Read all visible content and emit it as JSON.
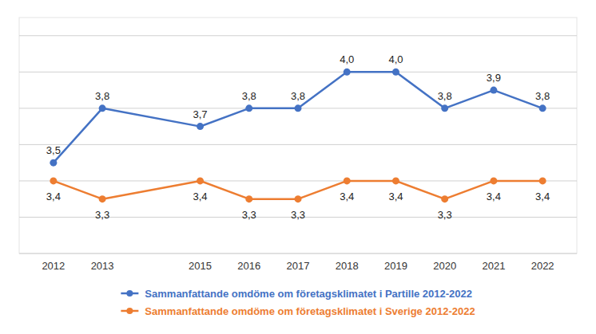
{
  "chart_data": {
    "type": "line",
    "x": [
      2012,
      2013,
      2015,
      2016,
      2017,
      2018,
      2019,
      2020,
      2021,
      2022
    ],
    "xlim": [
      2011.3,
      2022.7
    ],
    "xticks": [
      2012,
      2013,
      2015,
      2016,
      2017,
      2018,
      2019,
      2020,
      2021,
      2022
    ],
    "ylim": [
      3.0,
      4.3
    ],
    "yticks": [
      3.0,
      3.2,
      3.4,
      3.6,
      3.8,
      4.0,
      4.2
    ],
    "tick_labels": "x",
    "grid": true,
    "legend": "bottom",
    "data_labels": true,
    "marker": "circle",
    "series": [
      {
        "name": "Sammanfattande omdöme om företagsklimatet i Partille 2012-2022",
        "color": "#4472C4",
        "values": [
          3.5,
          3.8,
          3.7,
          3.8,
          3.8,
          4.0,
          4.0,
          3.8,
          3.9,
          3.8
        ],
        "value_labels": [
          "3,5",
          "3,8",
          "3,7",
          "3,8",
          "3,8",
          "4,0",
          "4,0",
          "3,8",
          "3,9",
          "3,8"
        ]
      },
      {
        "name": "Sammanfattande omdöme om företagsklimatet i Sverige 2012-2022",
        "color": "#ED7D31",
        "values": [
          3.4,
          3.3,
          3.4,
          3.3,
          3.3,
          3.4,
          3.4,
          3.3,
          3.4,
          3.4
        ],
        "value_labels": [
          "3,4",
          "3,3",
          "3,4",
          "3,3",
          "3,3",
          "3,4",
          "3,4",
          "3,3",
          "3,4",
          "3,4"
        ]
      }
    ]
  }
}
